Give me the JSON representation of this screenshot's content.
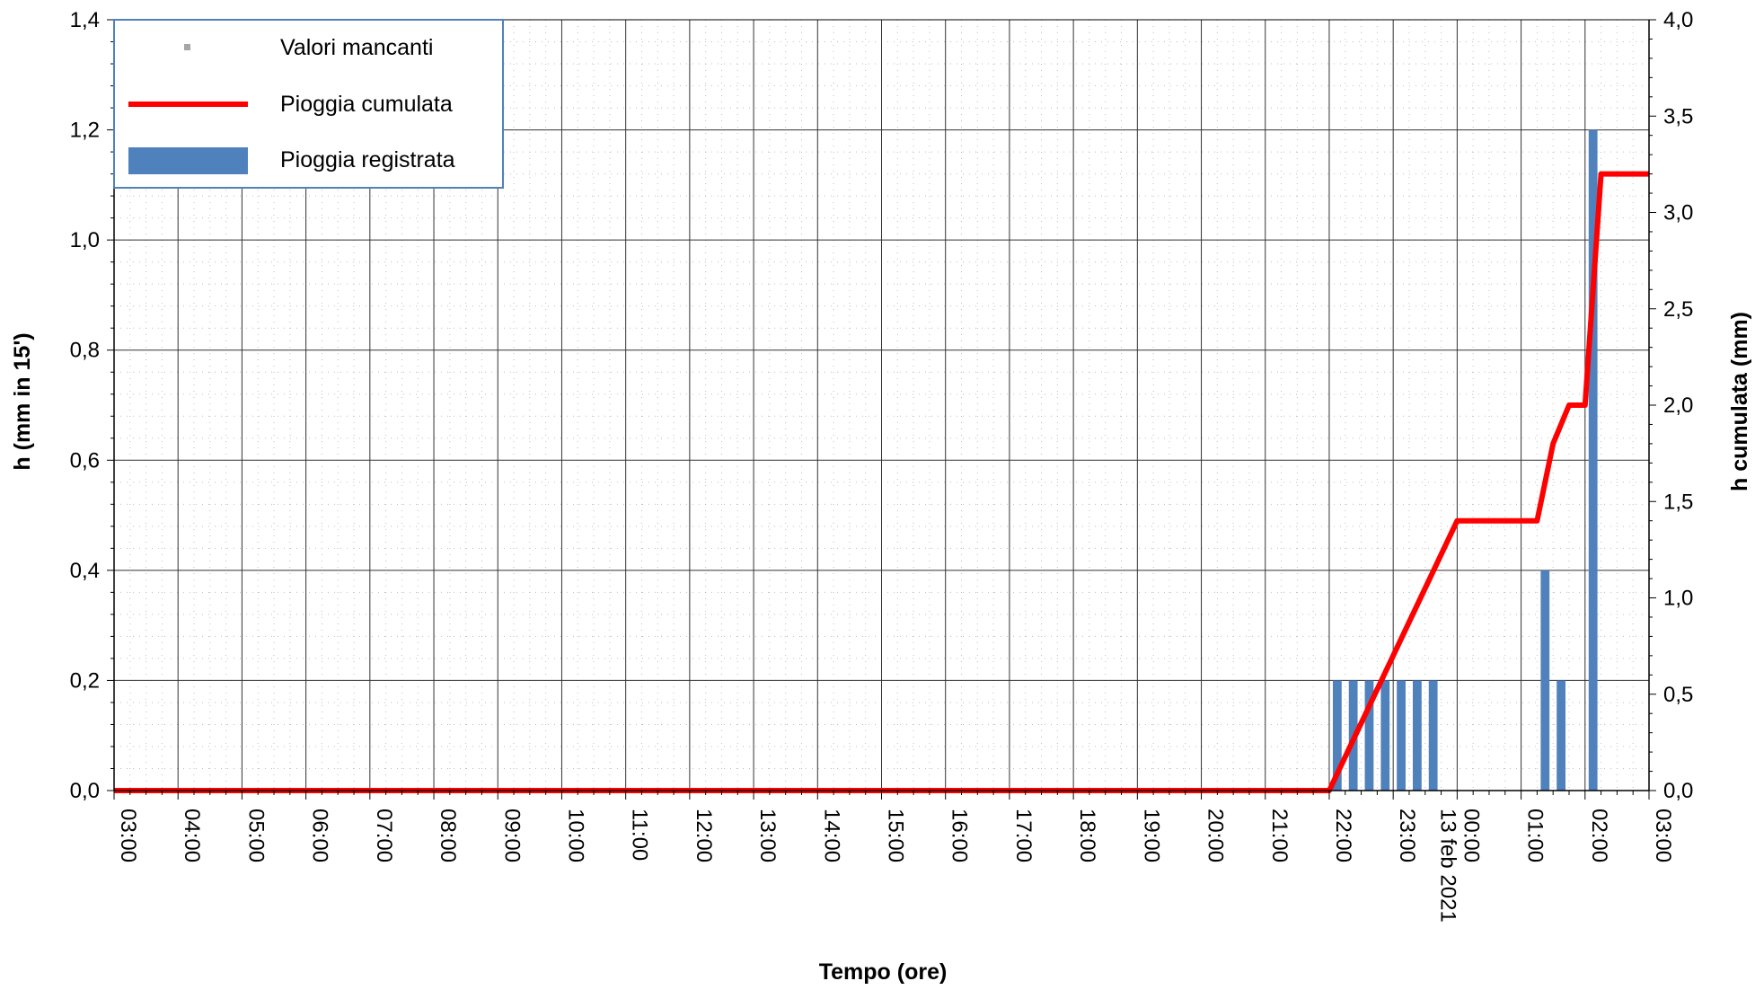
{
  "chart_data": {
    "type": "bar",
    "title": "",
    "xlabel": "Tempo (ore)",
    "ylabel_left": "h (mm in 15')",
    "ylabel_right": "h cumulata (mm)",
    "x_tick_labels": [
      "03:00",
      "04:00",
      "05:00",
      "06:00",
      "07:00",
      "08:00",
      "09:00",
      "10:00",
      "11:00",
      "12:00",
      "13:00",
      "14:00",
      "15:00",
      "16:00",
      "17:00",
      "18:00",
      "19:00",
      "20:00",
      "21:00",
      "22:00",
      "23:00",
      "00:00",
      "01:00",
      "02:00",
      "03:00"
    ],
    "date_label": "13 feb 2021",
    "date_label_at_tick": "00:00",
    "x_range_hours": [
      0,
      24
    ],
    "y_left": {
      "range": [
        0,
        1.4
      ],
      "ticks": [
        "0,0",
        "0,2",
        "0,4",
        "0,6",
        "0,8",
        "1,0",
        "1,2",
        "1,4"
      ],
      "tick_values": [
        0,
        0.2,
        0.4,
        0.6,
        0.8,
        1.0,
        1.2,
        1.4
      ]
    },
    "y_right": {
      "range": [
        0,
        4.0
      ],
      "ticks": [
        "0,0",
        "0,5",
        "1,0",
        "1,5",
        "2,0",
        "2,5",
        "3,0",
        "3,5",
        "4,0"
      ],
      "tick_values": [
        0,
        0.5,
        1.0,
        1.5,
        2.0,
        2.5,
        3.0,
        3.5,
        4.0
      ]
    },
    "grid": true,
    "legend": {
      "position": "top-left",
      "entries": [
        {
          "label": "Valori mancanti",
          "color": "#a6a6a6",
          "kind": "marker"
        },
        {
          "label": "Pioggia cumulata",
          "color": "#ff0000",
          "kind": "line"
        },
        {
          "label": "Pioggia registrata",
          "color": "#4f81bd",
          "kind": "bar"
        }
      ]
    },
    "series": [
      {
        "name": "Pioggia registrata",
        "axis": "left",
        "kind": "bar",
        "color": "#4f81bd",
        "points": [
          {
            "t": "22:15",
            "value": 0.2
          },
          {
            "t": "22:30",
            "value": 0.2
          },
          {
            "t": "22:45",
            "value": 0.2
          },
          {
            "t": "23:00",
            "value": 0.2
          },
          {
            "t": "23:15",
            "value": 0.2
          },
          {
            "t": "23:30",
            "value": 0.2
          },
          {
            "t": "23:45",
            "value": 0.2
          },
          {
            "t": "01:30",
            "value": 0.4
          },
          {
            "t": "01:45",
            "value": 0.2
          },
          {
            "t": "02:15",
            "value": 1.2
          }
        ]
      },
      {
        "name": "Pioggia cumulata",
        "axis": "right",
        "kind": "line",
        "color": "#ff0000",
        "points": [
          {
            "t": "03:00",
            "value": 0.0
          },
          {
            "t": "22:00",
            "value": 0.0
          },
          {
            "t": "00:00",
            "value": 1.4
          },
          {
            "t": "01:15",
            "value": 1.4
          },
          {
            "t": "01:30",
            "value": 1.8
          },
          {
            "t": "01:45",
            "value": 2.0
          },
          {
            "t": "02:00",
            "value": 2.0
          },
          {
            "t": "02:15",
            "value": 3.2
          },
          {
            "t": "03:00",
            "value": 3.2
          }
        ]
      }
    ]
  }
}
